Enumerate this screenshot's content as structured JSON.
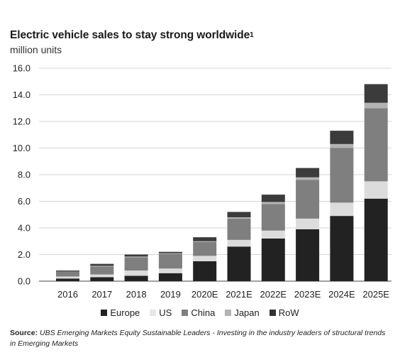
{
  "chart_data": {
    "type": "bar",
    "stacked": true,
    "title": "Electric vehicle sales to stay strong worldwide",
    "title_footnote": "1",
    "subtitle": "million units",
    "categories": [
      "2016",
      "2017",
      "2018",
      "2019",
      "2020E",
      "2021E",
      "2022E",
      "2023E",
      "2024E",
      "2025E"
    ],
    "series": [
      {
        "name": "Europe",
        "color": "#222222",
        "values": [
          0.2,
          0.3,
          0.4,
          0.6,
          1.5,
          2.6,
          3.2,
          3.9,
          4.9,
          6.2
        ]
      },
      {
        "name": "US",
        "color": "#dcdcdc",
        "values": [
          0.15,
          0.2,
          0.4,
          0.35,
          0.4,
          0.5,
          0.6,
          0.8,
          1.0,
          1.3
        ]
      },
      {
        "name": "China",
        "color": "#7f7f7f",
        "values": [
          0.35,
          0.6,
          1.0,
          1.1,
          1.05,
          1.6,
          2.0,
          2.9,
          4.1,
          5.5
        ]
      },
      {
        "name": "Japan",
        "color": "#b3b3b3",
        "values": [
          0.02,
          0.05,
          0.05,
          0.05,
          0.05,
          0.1,
          0.15,
          0.2,
          0.3,
          0.4
        ]
      },
      {
        "name": "RoW",
        "color": "#3b3b3b",
        "values": [
          0.08,
          0.15,
          0.15,
          0.1,
          0.3,
          0.4,
          0.55,
          0.7,
          1.0,
          1.4
        ]
      }
    ],
    "ylim": [
      0,
      16
    ],
    "yticks": [
      "0.0",
      "2.0",
      "4.0",
      "6.0",
      "8.0",
      "10.0",
      "12.0",
      "14.0",
      "16.0"
    ],
    "xlabel": "",
    "ylabel": "",
    "grid": true,
    "legend_position": "bottom"
  },
  "source": {
    "label": "Source",
    "text": "UBS Emerging Markets Equity Sustainable Leaders - Investing in the industry leaders of structural trends in Emerging Markets"
  }
}
